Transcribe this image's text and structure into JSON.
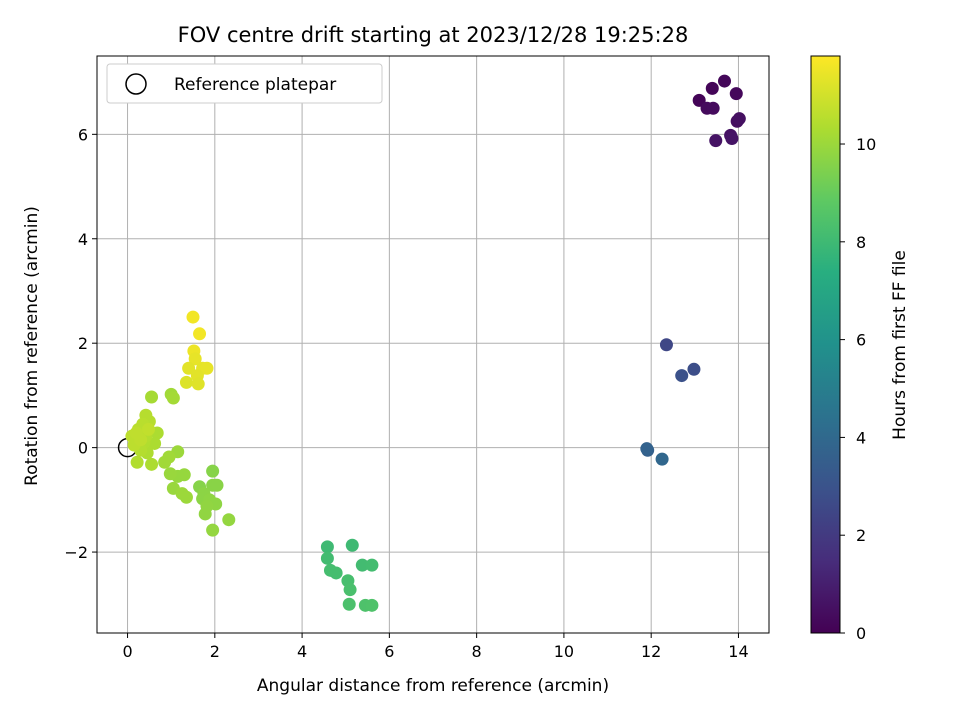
{
  "chart_data": {
    "type": "scatter",
    "title": "FOV centre drift starting at 2023/12/28 19:25:28",
    "xlabel": "Angular distance from reference (arcmin)",
    "ylabel": "Rotation from reference (arcmin)",
    "xlim": [
      -0.7,
      14.7
    ],
    "ylim": [
      -3.55,
      7.5
    ],
    "xticks": [
      0,
      2,
      4,
      6,
      8,
      10,
      12,
      14
    ],
    "yticks": [
      -2,
      0,
      2,
      4,
      6
    ],
    "ytick_labels": [
      "−2",
      "0",
      "2",
      "4",
      "6"
    ],
    "grid": true,
    "legend": {
      "position": "upper-left",
      "entries": [
        "Reference platepar"
      ]
    },
    "reference_point": {
      "x": 0,
      "y": 0
    },
    "colorbar": {
      "label": "Hours from first FF file",
      "range": [
        0,
        11.8
      ],
      "ticks": [
        0,
        2,
        4,
        6,
        8,
        10
      ],
      "colormap": "viridis"
    },
    "points": [
      {
        "x": 13.1,
        "y": 6.65,
        "t": 0.1
      },
      {
        "x": 13.4,
        "y": 6.88,
        "t": 0.15
      },
      {
        "x": 13.68,
        "y": 7.02,
        "t": 0.2
      },
      {
        "x": 13.95,
        "y": 6.78,
        "t": 0.25
      },
      {
        "x": 13.28,
        "y": 6.5,
        "t": 0.3
      },
      {
        "x": 13.42,
        "y": 6.5,
        "t": 0.35
      },
      {
        "x": 13.97,
        "y": 6.25,
        "t": 0.45
      },
      {
        "x": 14.02,
        "y": 6.3,
        "t": 0.5
      },
      {
        "x": 13.82,
        "y": 5.98,
        "t": 0.55
      },
      {
        "x": 13.48,
        "y": 5.88,
        "t": 0.6
      },
      {
        "x": 13.85,
        "y": 5.92,
        "t": 0.65
      },
      {
        "x": 12.35,
        "y": 1.97,
        "t": 2.5
      },
      {
        "x": 12.98,
        "y": 1.5,
        "t": 2.8
      },
      {
        "x": 12.7,
        "y": 1.38,
        "t": 2.9
      },
      {
        "x": 11.92,
        "y": -0.05,
        "t": 3.6
      },
      {
        "x": 11.9,
        "y": -0.02,
        "t": 3.7
      },
      {
        "x": 12.25,
        "y": -0.22,
        "t": 3.9
      },
      {
        "x": 4.58,
        "y": -1.9,
        "t": 8.0
      },
      {
        "x": 5.15,
        "y": -1.87,
        "t": 8.0
      },
      {
        "x": 4.58,
        "y": -2.12,
        "t": 8.1
      },
      {
        "x": 5.38,
        "y": -2.25,
        "t": 8.1
      },
      {
        "x": 5.6,
        "y": -2.25,
        "t": 8.15
      },
      {
        "x": 4.65,
        "y": -2.35,
        "t": 8.2
      },
      {
        "x": 4.78,
        "y": -2.4,
        "t": 8.2
      },
      {
        "x": 5.05,
        "y": -2.55,
        "t": 8.25
      },
      {
        "x": 5.1,
        "y": -2.72,
        "t": 8.3
      },
      {
        "x": 5.08,
        "y": -3.0,
        "t": 8.35
      },
      {
        "x": 5.45,
        "y": -3.02,
        "t": 8.4
      },
      {
        "x": 5.6,
        "y": -3.02,
        "t": 8.45
      },
      {
        "x": 1.95,
        "y": -0.45,
        "t": 9.6
      },
      {
        "x": 1.65,
        "y": -0.75,
        "t": 9.6
      },
      {
        "x": 1.95,
        "y": -0.72,
        "t": 9.65
      },
      {
        "x": 2.05,
        "y": -0.72,
        "t": 9.65
      },
      {
        "x": 1.75,
        "y": -0.88,
        "t": 9.7
      },
      {
        "x": 1.72,
        "y": -0.98,
        "t": 9.7
      },
      {
        "x": 1.88,
        "y": -1.0,
        "t": 9.75
      },
      {
        "x": 2.02,
        "y": -1.08,
        "t": 9.75
      },
      {
        "x": 1.82,
        "y": -1.12,
        "t": 9.8
      },
      {
        "x": 1.78,
        "y": -1.27,
        "t": 9.8
      },
      {
        "x": 2.32,
        "y": -1.38,
        "t": 9.85
      },
      {
        "x": 1.95,
        "y": -1.58,
        "t": 9.85
      },
      {
        "x": 1.3,
        "y": -0.52,
        "t": 9.9
      },
      {
        "x": 1.15,
        "y": -0.55,
        "t": 9.9
      },
      {
        "x": 0.98,
        "y": -0.5,
        "t": 9.95
      },
      {
        "x": 1.05,
        "y": -0.78,
        "t": 9.95
      },
      {
        "x": 1.25,
        "y": -0.88,
        "t": 10.0
      },
      {
        "x": 1.35,
        "y": -0.95,
        "t": 10.0
      },
      {
        "x": 1.15,
        "y": -0.08,
        "t": 10.0
      },
      {
        "x": 0.85,
        "y": -0.28,
        "t": 10.1
      },
      {
        "x": 0.95,
        "y": -0.18,
        "t": 10.1
      },
      {
        "x": 1.0,
        "y": 1.02,
        "t": 10.1
      },
      {
        "x": 1.05,
        "y": 0.95,
        "t": 10.15
      },
      {
        "x": 0.55,
        "y": 0.97,
        "t": 10.2
      },
      {
        "x": 0.68,
        "y": 0.28,
        "t": 10.3
      },
      {
        "x": 0.62,
        "y": 0.08,
        "t": 10.3
      },
      {
        "x": 0.55,
        "y": -0.32,
        "t": 10.3
      },
      {
        "x": 0.45,
        "y": -0.1,
        "t": 10.35
      },
      {
        "x": 0.38,
        "y": 0.1,
        "t": 10.4
      },
      {
        "x": 0.22,
        "y": -0.28,
        "t": 10.4
      },
      {
        "x": 0.3,
        "y": -0.05,
        "t": 10.45
      },
      {
        "x": 0.42,
        "y": 0.22,
        "t": 10.45
      },
      {
        "x": 0.5,
        "y": 0.5,
        "t": 10.5
      },
      {
        "x": 0.42,
        "y": 0.62,
        "t": 10.5
      },
      {
        "x": 0.35,
        "y": 0.45,
        "t": 10.55
      },
      {
        "x": 0.25,
        "y": 0.35,
        "t": 10.55
      },
      {
        "x": 0.1,
        "y": 0.22,
        "t": 10.6
      },
      {
        "x": 0.15,
        "y": 0.05,
        "t": 10.6
      },
      {
        "x": 0.3,
        "y": 0.15,
        "t": 10.65
      },
      {
        "x": 0.2,
        "y": 0.28,
        "t": 10.65
      },
      {
        "x": 0.48,
        "y": 0.35,
        "t": 10.7
      },
      {
        "x": 1.5,
        "y": 2.5,
        "t": 11.6
      },
      {
        "x": 1.65,
        "y": 2.18,
        "t": 11.6
      },
      {
        "x": 1.52,
        "y": 1.85,
        "t": 11.5
      },
      {
        "x": 1.55,
        "y": 1.7,
        "t": 11.4
      },
      {
        "x": 1.4,
        "y": 1.52,
        "t": 11.3
      },
      {
        "x": 1.72,
        "y": 1.52,
        "t": 11.35
      },
      {
        "x": 1.82,
        "y": 1.52,
        "t": 11.4
      },
      {
        "x": 1.6,
        "y": 1.38,
        "t": 11.3
      },
      {
        "x": 1.35,
        "y": 1.25,
        "t": 11.2
      },
      {
        "x": 1.62,
        "y": 1.22,
        "t": 11.25
      }
    ]
  }
}
